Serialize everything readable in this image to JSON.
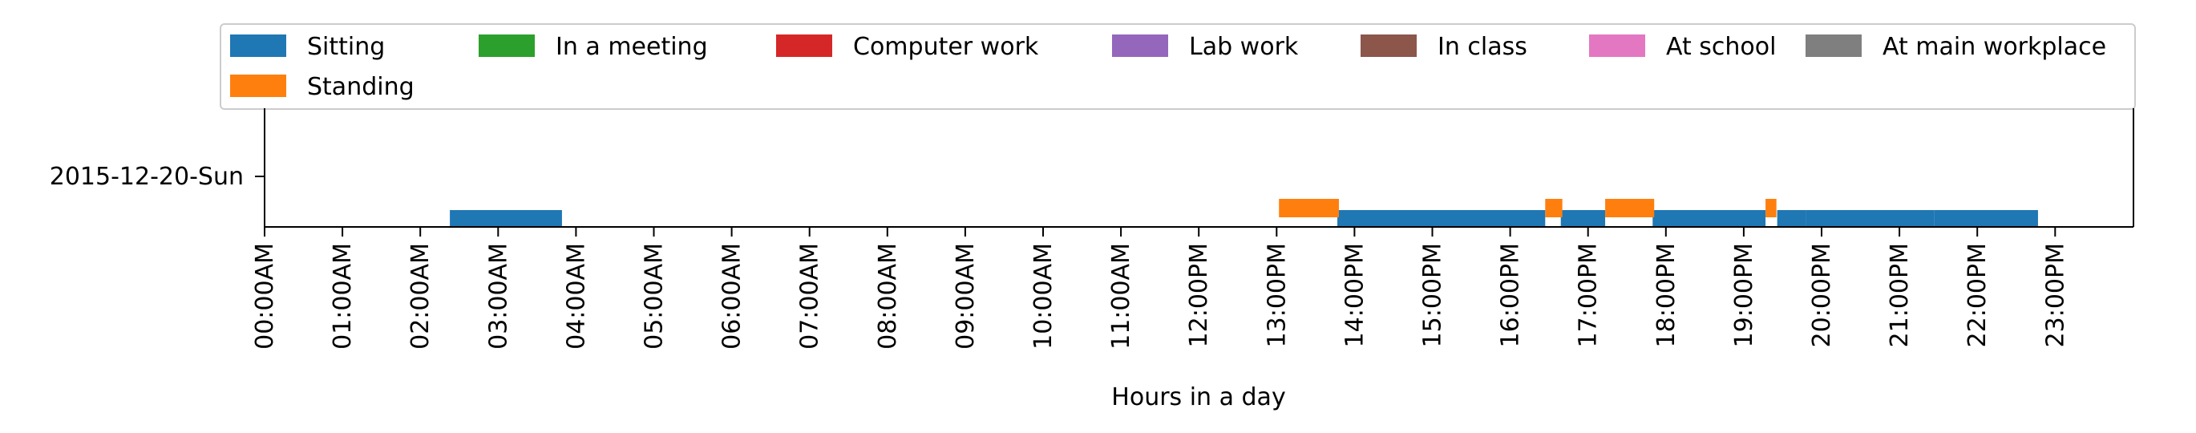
{
  "chart_data": {
    "type": "timeline",
    "title": "",
    "xlabel": "Hours in a day",
    "ylabel": "",
    "xlim": [
      0,
      24
    ],
    "x_ticks": [
      {
        "value": 0,
        "label": "00:00AM"
      },
      {
        "value": 1,
        "label": "01:00AM"
      },
      {
        "value": 2,
        "label": "02:00AM"
      },
      {
        "value": 3,
        "label": "03:00AM"
      },
      {
        "value": 4,
        "label": "04:00AM"
      },
      {
        "value": 5,
        "label": "05:00AM"
      },
      {
        "value": 6,
        "label": "06:00AM"
      },
      {
        "value": 7,
        "label": "07:00AM"
      },
      {
        "value": 8,
        "label": "08:00AM"
      },
      {
        "value": 9,
        "label": "09:00AM"
      },
      {
        "value": 10,
        "label": "10:00AM"
      },
      {
        "value": 11,
        "label": "11:00AM"
      },
      {
        "value": 12,
        "label": "12:00PM"
      },
      {
        "value": 13,
        "label": "13:00PM"
      },
      {
        "value": 14,
        "label": "14:00PM"
      },
      {
        "value": 15,
        "label": "15:00PM"
      },
      {
        "value": 16,
        "label": "16:00PM"
      },
      {
        "value": 17,
        "label": "17:00PM"
      },
      {
        "value": 18,
        "label": "18:00PM"
      },
      {
        "value": 19,
        "label": "19:00PM"
      },
      {
        "value": 20,
        "label": "20:00PM"
      },
      {
        "value": 21,
        "label": "21:00PM"
      },
      {
        "value": 22,
        "label": "22:00PM"
      },
      {
        "value": 23,
        "label": "23:00PM"
      }
    ],
    "y_categories": [
      "2015-12-20-Sun"
    ],
    "legend_position": "top",
    "legend": [
      {
        "name": "Sitting",
        "color": "#1f77b4"
      },
      {
        "name": "In a meeting",
        "color": "#2ca02c"
      },
      {
        "name": "Computer work",
        "color": "#d62728"
      },
      {
        "name": "Lab work",
        "color": "#9467bd"
      },
      {
        "name": "In class",
        "color": "#8c564b"
      },
      {
        "name": "At school",
        "color": "#e377c2"
      },
      {
        "name": "At main workplace",
        "color": "#7f7f7f"
      },
      {
        "name": "Standing",
        "color": "#ff7f0e"
      }
    ],
    "series": [
      {
        "name": "Sitting",
        "color": "#1f77b4",
        "intervals": [
          [
            2.38,
            3.82
          ],
          [
            13.78,
            16.45
          ],
          [
            16.65,
            17.22
          ],
          [
            17.83,
            19.28
          ],
          [
            19.43,
            19.8
          ],
          [
            19.8,
            21.45
          ],
          [
            21.45,
            22.78
          ]
        ]
      },
      {
        "name": "Standing",
        "color": "#ff7f0e",
        "intervals": [
          [
            13.03,
            13.8
          ],
          [
            16.45,
            16.67
          ],
          [
            17.22,
            17.85
          ],
          [
            19.28,
            19.42
          ]
        ]
      }
    ]
  }
}
